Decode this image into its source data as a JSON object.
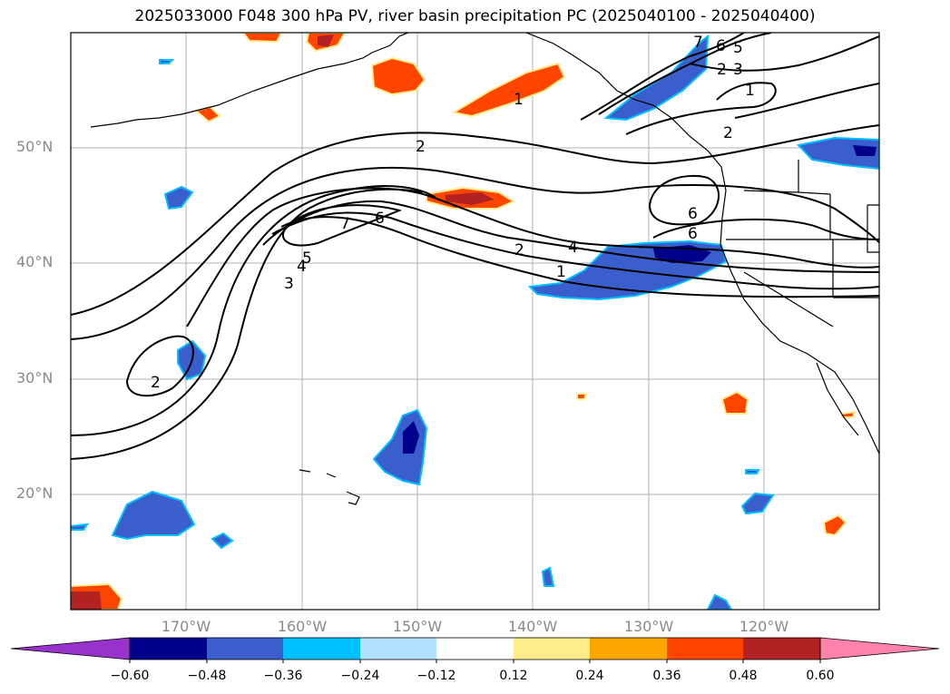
{
  "title": "2025033000 F048 300 hPa PV, river basin precipitation PC (2025040100 - 2025040400)",
  "lat_labels": [
    "50°N",
    "40°N",
    "30°N",
    "20°N"
  ],
  "lon_labels": [
    "170°W",
    "160°W",
    "150°W",
    "140°W",
    "130°W",
    "120°W"
  ],
  "colorbar": {
    "ticks": [
      "−0.60",
      "−0.48",
      "−0.36",
      "−0.24",
      "−0.12",
      "0.12",
      "0.24",
      "0.36",
      "0.48",
      "0.60"
    ],
    "colors": [
      "#9932cc",
      "#00008b",
      "#3a5fcd",
      "#00bfff",
      "#b0e2ff",
      "#ffffff",
      "#ffec8b",
      "#ffa500",
      "#ff4500",
      "#b22222",
      "#ff82ab"
    ]
  },
  "contour_labels": [
    "1",
    "2",
    "2",
    "4",
    "1",
    "2",
    "3",
    "4",
    "5",
    "6",
    "7",
    "1",
    "2",
    "6",
    "6",
    "7",
    "6",
    "5",
    "3",
    "2"
  ],
  "legend_colors": {
    "positive_strong": "#b22222",
    "positive": "#ff4500",
    "negative": "#3a5fcd",
    "negative_strong": "#00008b"
  }
}
